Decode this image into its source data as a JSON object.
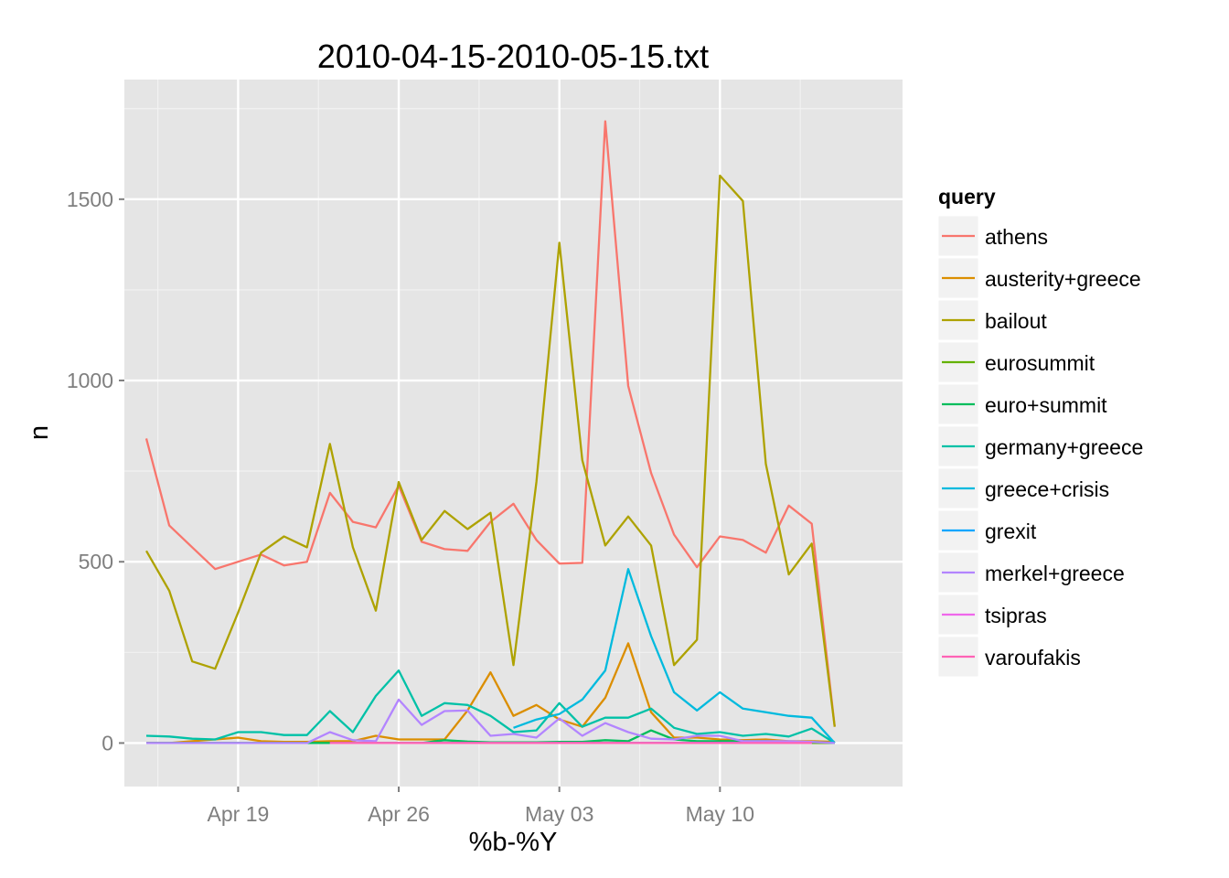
{
  "chart_data": {
    "type": "line",
    "title": "2010-04-15-2010-05-15.txt",
    "xlabel": "%b-%Y",
    "ylabel": "n",
    "ylim": [
      -120,
      1830
    ],
    "xlim": [
      "2010-04-14T01:00",
      "2010-05-17T23:00"
    ],
    "y_ticks": [
      0,
      500,
      1000,
      1500
    ],
    "y_tick_labels": [
      "0",
      "500",
      "1000",
      "1500"
    ],
    "x_ticks": [
      "2010-04-19",
      "2010-04-26",
      "2010-05-03",
      "2010-05-10"
    ],
    "x_tick_labels": [
      "Apr 19",
      "Apr 26",
      "May 03",
      "May 10"
    ],
    "grid": true,
    "background": "#e5e5e5",
    "legend_title": "query",
    "legend_position": "right",
    "dates": [
      "2010-04-15",
      "2010-04-16",
      "2010-04-17",
      "2010-04-18",
      "2010-04-19",
      "2010-04-20",
      "2010-04-21",
      "2010-04-22",
      "2010-04-23",
      "2010-04-24",
      "2010-04-25",
      "2010-04-26",
      "2010-04-27",
      "2010-04-28",
      "2010-04-29",
      "2010-04-30",
      "2010-05-01",
      "2010-05-02",
      "2010-05-03",
      "2010-05-04",
      "2010-05-05",
      "2010-05-06",
      "2010-05-07",
      "2010-05-08",
      "2010-05-09",
      "2010-05-10",
      "2010-05-11",
      "2010-05-12",
      "2010-05-13",
      "2010-05-14",
      "2010-05-15"
    ],
    "series": [
      {
        "name": "athens",
        "color": "#F8766D",
        "values": [
          840,
          600,
          540,
          480,
          500,
          520,
          490,
          500,
          690,
          610,
          595,
          710,
          555,
          535,
          530,
          610,
          660,
          560,
          495,
          497,
          1715,
          985,
          745,
          575,
          485,
          570,
          560,
          525,
          655,
          605,
          45
        ]
      },
      {
        "name": "austerity+greece",
        "color": "#DB8E00",
        "values": [
          0,
          0,
          5,
          10,
          15,
          5,
          3,
          3,
          5,
          5,
          20,
          10,
          10,
          10,
          90,
          195,
          75,
          105,
          65,
          45,
          125,
          275,
          85,
          15,
          15,
          10,
          8,
          10,
          5,
          5,
          3
        ]
      },
      {
        "name": "bailout",
        "color": "#AEA200",
        "values": [
          530,
          420,
          225,
          205,
          360,
          525,
          570,
          540,
          825,
          540,
          365,
          720,
          560,
          640,
          590,
          635,
          215,
          720,
          1380,
          780,
          545,
          625,
          545,
          215,
          285,
          1565,
          1495,
          770,
          465,
          550,
          45
        ]
      },
      {
        "name": "eurosummit",
        "color": "#64B200",
        "values": [
          0,
          0,
          0,
          0,
          0,
          0,
          0,
          0,
          0,
          0,
          0,
          0,
          0,
          0,
          0,
          0,
          0,
          0,
          0,
          0,
          0,
          0,
          0,
          0,
          0,
          0,
          0,
          0,
          0,
          0,
          0
        ]
      },
      {
        "name": "euro+summit",
        "color": "#00BD5C",
        "values": [
          0,
          0,
          0,
          0,
          0,
          0,
          0,
          0,
          0,
          0,
          0,
          0,
          0,
          8,
          4,
          2,
          2,
          2,
          3,
          3,
          8,
          5,
          35,
          10,
          5,
          5,
          5,
          5,
          3,
          3,
          0
        ]
      },
      {
        "name": "germany+greece",
        "color": "#00C1A7",
        "values": [
          20,
          18,
          12,
          10,
          30,
          30,
          22,
          22,
          88,
          30,
          130,
          200,
          75,
          110,
          105,
          75,
          30,
          35,
          110,
          45,
          70,
          70,
          95,
          42,
          25,
          30,
          20,
          25,
          18,
          40,
          0
        ]
      },
      {
        "name": "greece+crisis",
        "color": "#00BADE",
        "values": [
          null,
          null,
          null,
          null,
          null,
          null,
          null,
          null,
          null,
          null,
          null,
          null,
          null,
          null,
          null,
          null,
          42,
          65,
          80,
          120,
          200,
          480,
          295,
          140,
          90,
          140,
          95,
          85,
          75,
          70,
          0
        ]
      },
      {
        "name": "grexit",
        "color": "#00A6FF",
        "values": [
          null,
          null,
          null,
          null,
          null,
          null,
          null,
          null,
          null,
          null,
          null,
          null,
          null,
          null,
          null,
          null,
          null,
          null,
          null,
          null,
          null,
          0,
          0,
          0,
          0,
          0,
          0,
          0,
          0,
          0,
          null
        ]
      },
      {
        "name": "merkel+greece",
        "color": "#B385FF",
        "values": [
          0,
          0,
          0,
          0,
          0,
          0,
          0,
          0,
          30,
          8,
          5,
          120,
          50,
          88,
          90,
          20,
          25,
          15,
          68,
          20,
          55,
          30,
          12,
          10,
          20,
          20,
          5,
          5,
          5,
          3,
          0
        ]
      },
      {
        "name": "tsipras",
        "color": "#EF67EB",
        "values": [
          null,
          null,
          null,
          null,
          null,
          null,
          null,
          null,
          0,
          0,
          0,
          0,
          0,
          0,
          0,
          0,
          0,
          0,
          0,
          0,
          0,
          0,
          0,
          0,
          0,
          0,
          0,
          0,
          0,
          0,
          null
        ]
      },
      {
        "name": "varoufakis",
        "color": "#FF63B6",
        "values": [
          null,
          null,
          null,
          null,
          null,
          null,
          null,
          null,
          0,
          0,
          0,
          0,
          0,
          0,
          0,
          0,
          0,
          0,
          0,
          0,
          0,
          0,
          0,
          0,
          0,
          0,
          0,
          0,
          0,
          0,
          null
        ]
      }
    ]
  }
}
